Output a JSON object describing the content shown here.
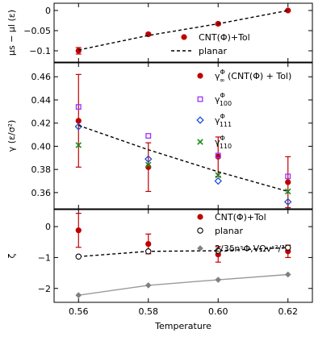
{
  "chart_data": {
    "type": "scatter",
    "xlabel": "Temperature",
    "xlim": [
      0.553,
      0.627
    ],
    "xticks": [
      0.56,
      0.58,
      0.6,
      0.62
    ],
    "xtick_labels": [
      "0.56",
      "0.58",
      "0.60",
      "0.62"
    ],
    "panels": [
      {
        "id": "top",
        "ylabel": "μs − μl (ε)",
        "ylim": [
          -0.128,
          0.018
        ],
        "yticks": [
          0,
          -0.05,
          -0.1
        ],
        "ytick_labels": [
          "0",
          "−0.05",
          "−0.1"
        ],
        "legend": [
          {
            "text": "CNT(Φ)+Tol",
            "marker": "circle",
            "color": "#c00000"
          },
          {
            "text": "planar",
            "marker": "dashed",
            "color": "#000000"
          }
        ],
        "series": [
          {
            "name": "CNT(Φ)+Tol",
            "marker": "circle",
            "color": "#c00000",
            "x": [
              0.56,
              0.58,
              0.6,
              0.62
            ],
            "y": [
              -0.1,
              -0.059,
              -0.033,
              0.0
            ],
            "err": [
              0.008,
              0.003,
              0.003,
              0.002
            ]
          },
          {
            "name": "planar",
            "marker": "dashed",
            "color": "#000000",
            "x": [
              0.56,
              0.58,
              0.6,
              0.62
            ],
            "y": [
              -0.098,
              -0.062,
              -0.033,
              0.0
            ]
          }
        ]
      },
      {
        "id": "middle",
        "ylabel": "γ (ε/σ²)",
        "ylim": [
          0.346,
          0.472
        ],
        "yticks": [
          0.36,
          0.38,
          0.4,
          0.42,
          0.44,
          0.46
        ],
        "ytick_labels": [
          "0.36",
          "0.38",
          "0.40",
          "0.42",
          "0.44",
          "0.46"
        ],
        "legend": [
          {
            "text": "γ∞Φ (CNT(Φ) + Tol)",
            "main": "γ",
            "sub": "∞",
            "sup": "Φ",
            "after": " (CNT(Φ) + Tol)",
            "marker": "circle",
            "color": "#c00000"
          },
          {
            "text": "γ100Φ",
            "main": "γ",
            "sub": "100",
            "sup": "Φ",
            "after": "",
            "marker": "square",
            "color": "#9b30ff"
          },
          {
            "text": "γ111Φ",
            "main": "γ",
            "sub": "111",
            "sup": "Φ",
            "after": "",
            "marker": "diamond",
            "color": "#1f4fd8"
          },
          {
            "text": "γ110Φ",
            "main": "γ",
            "sub": "110",
            "sup": "Φ",
            "after": "",
            "marker": "cross",
            "color": "#1a8a1a"
          }
        ],
        "series": [
          {
            "name": "γ∞Φ",
            "marker": "circle",
            "color": "#c00000",
            "x": [
              0.56,
              0.58,
              0.6,
              0.62
            ],
            "y": [
              0.422,
              0.382,
              0.391,
              0.369
            ],
            "err": [
              0.04,
              0.021,
              0.017,
              0.022
            ]
          },
          {
            "name": "γ100Φ",
            "marker": "square",
            "color": "#9b30ff",
            "x": [
              0.56,
              0.58,
              0.6,
              0.62
            ],
            "y": [
              0.434,
              0.409,
              0.392,
              0.374
            ]
          },
          {
            "name": "γ111Φ",
            "marker": "diamond",
            "color": "#1f4fd8",
            "x": [
              0.56,
              0.58,
              0.6,
              0.62
            ],
            "y": [
              0.417,
              0.389,
              0.37,
              0.352
            ]
          },
          {
            "name": "γ110Φ",
            "marker": "cross",
            "color": "#1a8a1a",
            "x": [
              0.56,
              0.58,
              0.6,
              0.62
            ],
            "y": [
              0.401,
              0.384,
              0.375,
              0.361
            ]
          },
          {
            "name": "dashed-fit",
            "marker": "dashed",
            "color": "#000000",
            "x": [
              0.56,
              0.58,
              0.6,
              0.62
            ],
            "y": [
              0.418,
              0.397,
              0.378,
              0.361
            ]
          }
        ]
      },
      {
        "id": "bottom",
        "ylabel": "ζ",
        "ylim": [
          -2.45,
          0.55
        ],
        "yticks": [
          0,
          -1,
          -2
        ],
        "ytick_labels": [
          "0",
          "−1",
          "−2"
        ],
        "legend": [
          {
            "text": "CNT(Φ)+Tol",
            "marker": "circle",
            "color": "#c00000"
          },
          {
            "text": "planar",
            "marker": "open-circle",
            "color": "#000000"
          },
          {
            "text": "2/3δnˢΦ,VΩvˢ²/³",
            "marker": "gray-diamond",
            "color": "#808080"
          }
        ],
        "series": [
          {
            "name": "CNT(Φ)+Tol",
            "marker": "circle",
            "color": "#c00000",
            "x": [
              0.56,
              0.58,
              0.6,
              0.62
            ],
            "y": [
              -0.12,
              -0.56,
              -0.9,
              -0.8
            ],
            "err": [
              0.55,
              0.32,
              0.25,
              0.2
            ]
          },
          {
            "name": "planar",
            "marker": "open-circle",
            "color": "#000000",
            "x": [
              0.56,
              0.58,
              0.6,
              0.62
            ],
            "y": [
              -0.97,
              -0.8,
              -0.78,
              -0.68
            ]
          },
          {
            "name": "2/3δnˢΦ,VΩvˢ²/³",
            "marker": "gray-diamond",
            "color": "#808080",
            "x": [
              0.56,
              0.58,
              0.6,
              0.62
            ],
            "y": [
              -2.22,
              -1.9,
              -1.72,
              -1.55
            ]
          }
        ]
      }
    ]
  }
}
